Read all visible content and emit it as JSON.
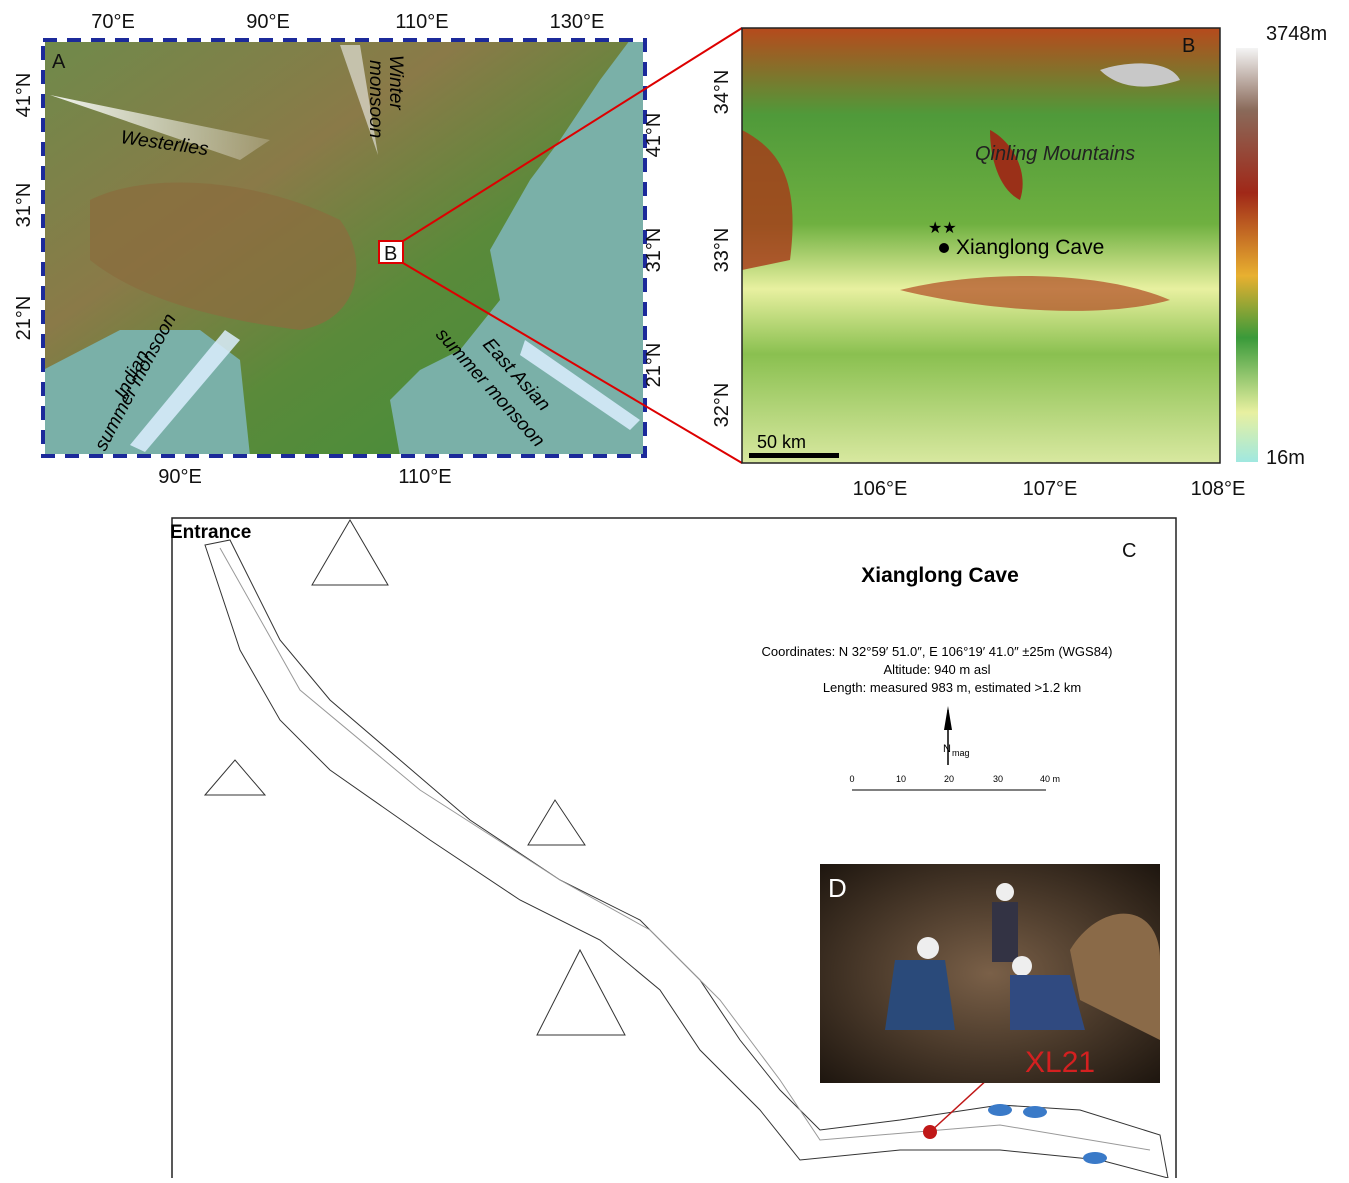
{
  "panel_a": {
    "label": "A",
    "top_ticks": [
      "70°E",
      "90°E",
      "110°E",
      "130°E"
    ],
    "bottom_ticks": [
      "90°E",
      "110°E"
    ],
    "left_ticks": [
      "41°N",
      "31°N",
      "21°N"
    ],
    "right_ticks": [
      "41°N",
      "31°N",
      "21°N"
    ],
    "inset_label": "B",
    "annotations": {
      "westerlies": "Westerlies",
      "winter_1": "Winter",
      "winter_2": "monsoon",
      "indian_1": "Indian",
      "indian_2": "summer monsoon",
      "east_1": "East Asian",
      "east_2": "summer monsoon"
    }
  },
  "panel_b": {
    "label": "B",
    "left_ticks": [
      "34°N",
      "33°N",
      "32°N"
    ],
    "bottom_ticks": [
      "106°E",
      "107°E",
      "108°E"
    ],
    "mountains": "Qinling Mountains",
    "cave": "Xianglong Cave",
    "scale": "50 km",
    "colorbar_max": "3748m",
    "colorbar_min": "16m"
  },
  "panel_c": {
    "label": "C",
    "entrance": "Entrance",
    "title": "Xianglong Cave",
    "coordinates": "Coordinates: N 32°59′ 51.0″, E 106°19′ 41.0″ ±25m (WGS84)",
    "altitude": "Altitude: 940 m asl",
    "length": "Length: measured 983 m, estimated >1.2 km",
    "north": "N",
    "north_sub": "mag",
    "scale_ticks": [
      "0",
      "10",
      "20",
      "30",
      "40 m"
    ]
  },
  "panel_d": {
    "label": "D",
    "sample": "XL21"
  }
}
